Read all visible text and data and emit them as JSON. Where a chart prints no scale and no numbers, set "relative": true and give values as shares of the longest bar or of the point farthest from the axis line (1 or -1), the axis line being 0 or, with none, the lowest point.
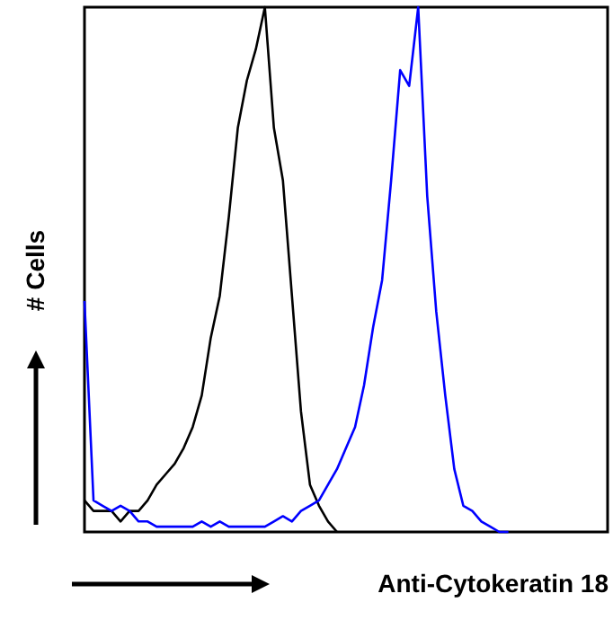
{
  "chart_data": {
    "type": "line",
    "relative": true,
    "xlabel": "Anti-Cytokeratin 18",
    "ylabel": "# Cells",
    "categories": [
      null,
      null,
      null,
      null,
      null,
      null,
      null,
      null,
      null,
      null,
      null,
      null,
      null,
      null,
      null,
      null,
      null,
      null,
      null,
      null,
      null,
      null,
      null,
      null,
      null,
      null,
      null,
      null,
      null,
      null,
      null,
      null,
      null,
      null,
      null,
      null,
      null,
      null,
      null,
      null,
      null,
      null,
      null,
      null,
      null,
      null,
      null,
      null,
      null,
      null,
      null,
      null,
      null,
      null,
      null,
      null,
      null,
      null,
      null
    ],
    "series": [
      {
        "color": "#000000",
        "values": [
          0.06,
          0.04,
          0.04,
          0.04,
          0.02,
          0.04,
          0.04,
          0.06,
          0.09,
          0.11,
          0.13,
          0.16,
          0.2,
          0.26,
          0.37,
          0.45,
          0.6,
          0.77,
          0.86,
          0.92,
          1.0,
          0.77,
          0.67,
          0.45,
          0.23,
          0.09,
          0.05,
          0.02,
          0.0,
          null,
          null,
          null,
          null,
          null,
          null,
          null,
          null,
          null,
          null,
          null,
          null,
          null,
          null,
          null,
          null,
          null,
          null,
          null,
          null,
          null,
          null,
          null,
          null,
          null,
          null,
          null,
          null,
          null,
          null
        ]
      },
      {
        "color": "#0000ff",
        "values": [
          0.44,
          0.06,
          0.05,
          0.04,
          0.05,
          0.04,
          0.02,
          0.02,
          0.01,
          0.01,
          0.01,
          0.01,
          0.01,
          0.02,
          0.01,
          0.02,
          0.01,
          0.01,
          0.01,
          0.01,
          0.01,
          0.02,
          0.03,
          0.02,
          0.04,
          0.05,
          0.06,
          0.09,
          0.12,
          0.16,
          0.2,
          0.28,
          0.39,
          0.48,
          0.67,
          0.88,
          0.85,
          1.0,
          0.64,
          0.42,
          0.26,
          0.12,
          0.05,
          0.04,
          0.02,
          0.01,
          0.0,
          0.0,
          null,
          null,
          null,
          null,
          null,
          null,
          null,
          null,
          null,
          null,
          null
        ]
      }
    ]
  }
}
